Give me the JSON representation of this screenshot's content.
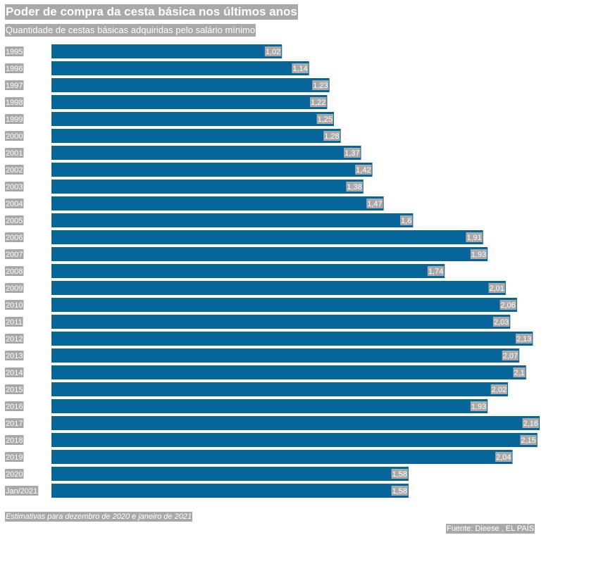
{
  "header": {
    "title": "Poder de compra da cesta básica nos últimos anos",
    "subtitle": "Quantidade de cestas básicas adquiridas pelo salário mínimo"
  },
  "footer": {
    "note": "Estimativas para dezembro de 2020 e janeiro de 2021",
    "source": "Fuente: Dieese , EL PAÍS"
  },
  "colors": {
    "bar": "#08659a",
    "label_bg": "#a9a9a9",
    "label_text": "#ffffff"
  },
  "chart_data": {
    "type": "bar",
    "orientation": "horizontal",
    "title": "Poder de compra da cesta básica nos últimos anos",
    "subtitle": "Quantidade de cestas básicas adquiridas pelo salário mínimo",
    "categories": [
      "1995",
      "1996",
      "1997",
      "1998",
      "1999",
      "2000",
      "2001",
      "2002",
      "2003",
      "2004",
      "2005",
      "2006",
      "2007",
      "2008",
      "2009",
      "2010",
      "2011",
      "2012",
      "2013",
      "2014",
      "2015",
      "2016",
      "2017",
      "2018",
      "2019",
      "2020",
      "Jan/2021"
    ],
    "values": [
      1.02,
      1.14,
      1.23,
      1.22,
      1.25,
      1.28,
      1.37,
      1.42,
      1.38,
      1.47,
      1.6,
      1.91,
      1.93,
      1.74,
      2.01,
      2.06,
      2.03,
      2.13,
      2.07,
      2.1,
      2.02,
      1.93,
      2.16,
      2.15,
      2.04,
      1.58,
      1.58
    ],
    "value_labels": [
      "1,02",
      "1,14",
      "1,23",
      "1,22",
      "1,25",
      "1,28",
      "1,37",
      "1,42",
      "1,38",
      "1,47",
      "1,6",
      "1,91",
      "1,93",
      "1,74",
      "2,01",
      "2,06",
      "2,03",
      "2,13",
      "2,07",
      "2,1",
      "2,02",
      "1,93",
      "2,16",
      "2,15",
      "2,04",
      "1,58",
      "1,58"
    ],
    "xlim": [
      0,
      2.16
    ],
    "grid": false,
    "legend": "none"
  }
}
